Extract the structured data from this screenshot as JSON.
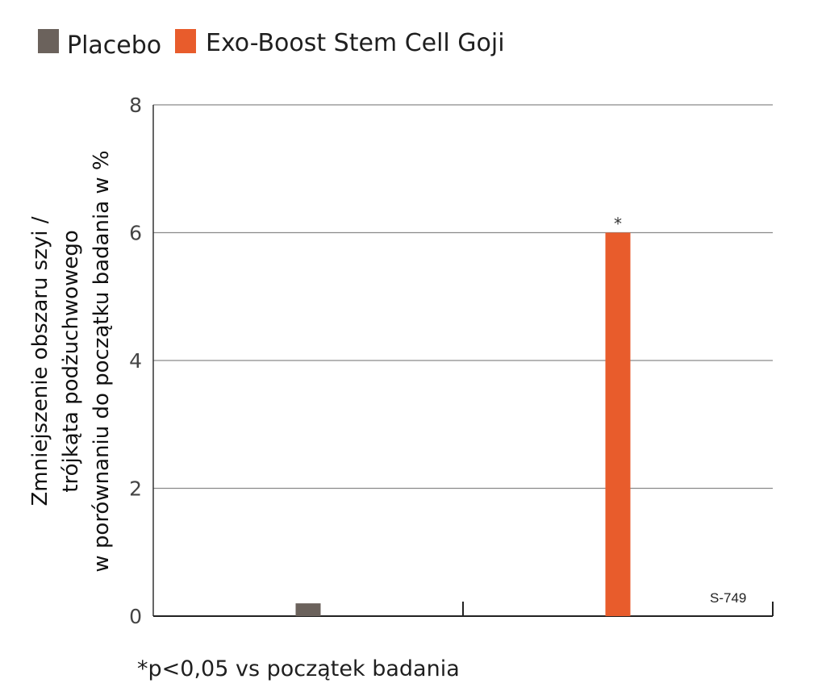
{
  "chart_data": {
    "type": "bar",
    "categories": [
      "Placebo",
      "Exo-Boost Stem Cell Goji"
    ],
    "series": [
      {
        "name": "Placebo",
        "values": [
          0.2,
          null
        ],
        "color": "#6b625c"
      },
      {
        "name": "Exo-Boost Stem Cell Goji",
        "values": [
          null,
          6.0
        ],
        "color": "#e85c2c"
      }
    ],
    "ylabel_lines": [
      "Zmniejszenie obszaru szyi /",
      "trójkąta podżuchwowego",
      "w porównaniu do początku badania  w %"
    ],
    "yticks": [
      "0",
      "2",
      "4",
      "6",
      "8"
    ],
    "ylim": [
      0,
      8
    ],
    "grid": true,
    "legend_position": "top-left",
    "significance_marker": "*",
    "footnote": "*p<0,05 vs początek badania",
    "code_label": "S-749"
  }
}
